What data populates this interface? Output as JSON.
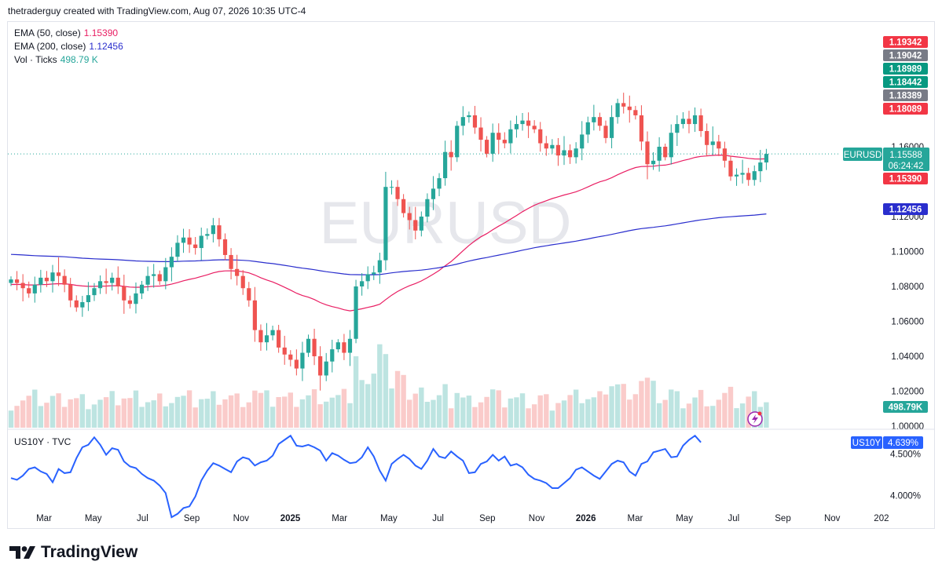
{
  "header": {
    "text": "thetraderguy created with TradingView.com, Aug 07, 2026 10:35 UTC-4"
  },
  "legend": {
    "ema50": {
      "label": "EMA (50, close)",
      "value": "1.15390",
      "color": "#e91e63"
    },
    "ema200": {
      "label": "EMA (200, close)",
      "value": "1.12456",
      "color": "#2a2ecd"
    },
    "vol": {
      "label": "Vol · Ticks",
      "value": "498.79 K",
      "color": "#26a69a"
    }
  },
  "sub_legend": {
    "label": "US10Y · TVC"
  },
  "watermark": "EURUSD",
  "footer": {
    "brand": "TradingView"
  },
  "colors": {
    "up": "#26a69a",
    "down": "#ef5350",
    "ema50": "#e91e63",
    "ema200": "#2a2ecd",
    "us10y": "#2962ff"
  },
  "chart_data": [
    {
      "type": "candlestick",
      "symbol": "EURUSD",
      "timeframe": "weekly",
      "y_axis_ticks": [
        "1.16000",
        "1.12000",
        "1.10000",
        "1.08000",
        "1.06000",
        "1.04000",
        "1.02000",
        "1.00000"
      ],
      "ylim": [
        1.0,
        1.2
      ],
      "x_axis_ticks": [
        "Mar",
        "May",
        "Jul",
        "Sep",
        "Nov",
        "2025",
        "Mar",
        "May",
        "Jul",
        "Sep",
        "Nov",
        "2026",
        "Mar",
        "May",
        "Jul",
        "Sep",
        "Nov",
        "202"
      ],
      "price_labels": [
        {
          "text": "1.19342",
          "color": "#f23645"
        },
        {
          "text": "1.19042",
          "color": "#787b86"
        },
        {
          "text": "1.18989",
          "color": "#089981"
        },
        {
          "text": "1.18442",
          "color": "#089981"
        },
        {
          "text": "1.18389",
          "color": "#787b86"
        },
        {
          "text": "1.18089",
          "color": "#f23645"
        }
      ],
      "last_price": {
        "symbol": "EURUSD",
        "price": "1.15588",
        "countdown": "06:24:42"
      },
      "ema50_label": "1.15390",
      "ema200_label": "1.12456",
      "volume_label": "498.79K",
      "closes": [
        1.084,
        1.082,
        1.079,
        1.076,
        1.081,
        1.085,
        1.083,
        1.088,
        1.086,
        1.081,
        1.072,
        1.068,
        1.071,
        1.075,
        1.079,
        1.083,
        1.082,
        1.085,
        1.08,
        1.072,
        1.07,
        1.076,
        1.081,
        1.086,
        1.087,
        1.083,
        1.091,
        1.097,
        1.105,
        1.108,
        1.104,
        1.102,
        1.109,
        1.11,
        1.115,
        1.107,
        1.098,
        1.09,
        1.086,
        1.079,
        1.072,
        1.055,
        1.048,
        1.052,
        1.055,
        1.045,
        1.041,
        1.038,
        1.033,
        1.042,
        1.05,
        1.04,
        1.029,
        1.037,
        1.044,
        1.048,
        1.042,
        1.05,
        1.08,
        1.083,
        1.087,
        1.088,
        1.095,
        1.137,
        1.137,
        1.13,
        1.122,
        1.118,
        1.112,
        1.12,
        1.13,
        1.136,
        1.142,
        1.157,
        1.154,
        1.172,
        1.177,
        1.178,
        1.171,
        1.164,
        1.156,
        1.168,
        1.164,
        1.162,
        1.17,
        1.173,
        1.175,
        1.172,
        1.17,
        1.162,
        1.159,
        1.161,
        1.155,
        1.158,
        1.154,
        1.159,
        1.167,
        1.174,
        1.177,
        1.172,
        1.165,
        1.177,
        1.185,
        1.183,
        1.181,
        1.178,
        1.163,
        1.15,
        1.152,
        1.16,
        1.154,
        1.168,
        1.173,
        1.176,
        1.173,
        1.178,
        1.169,
        1.161,
        1.163,
        1.159,
        1.152,
        1.143,
        1.144,
        1.145,
        1.141,
        1.146,
        1.151,
        1.1559
      ],
      "us10y": {
        "symbol": "US10Y",
        "last": "4.639%",
        "y_axis_ticks": [
          "4.500%",
          "4.000%"
        ],
        "ylim": [
          3.85,
          4.75
        ],
        "values": [
          4.21,
          4.19,
          4.24,
          4.32,
          4.34,
          4.29,
          4.26,
          4.16,
          4.32,
          4.27,
          4.28,
          4.45,
          4.58,
          4.61,
          4.7,
          4.61,
          4.49,
          4.57,
          4.55,
          4.41,
          4.35,
          4.33,
          4.26,
          4.21,
          4.18,
          4.12,
          4.03,
          3.74,
          3.78,
          3.85,
          3.87,
          3.99,
          4.18,
          4.3,
          4.39,
          4.36,
          4.32,
          4.28,
          4.41,
          4.46,
          4.44,
          4.36,
          4.4,
          4.42,
          4.48,
          4.62,
          4.67,
          4.72,
          4.6,
          4.59,
          4.61,
          4.58,
          4.54,
          4.42,
          4.51,
          4.48,
          4.43,
          4.39,
          4.4,
          4.46,
          4.58,
          4.47,
          4.3,
          4.18,
          4.38,
          4.44,
          4.49,
          4.44,
          4.36,
          4.32,
          4.42,
          4.56,
          4.47,
          4.45,
          4.53,
          4.47,
          4.42,
          4.27,
          4.28,
          4.38,
          4.41,
          4.49,
          4.42,
          4.47,
          4.36,
          4.38,
          4.34,
          4.25,
          4.2,
          4.18,
          4.15,
          4.09,
          4.09,
          4.15,
          4.21,
          4.31,
          4.34,
          4.29,
          4.24,
          4.2,
          4.29,
          4.38,
          4.42,
          4.4,
          4.29,
          4.24,
          4.38,
          4.41,
          4.52,
          4.54,
          4.56,
          4.46,
          4.47,
          4.6,
          4.67,
          4.72,
          4.64
        ]
      }
    }
  ]
}
